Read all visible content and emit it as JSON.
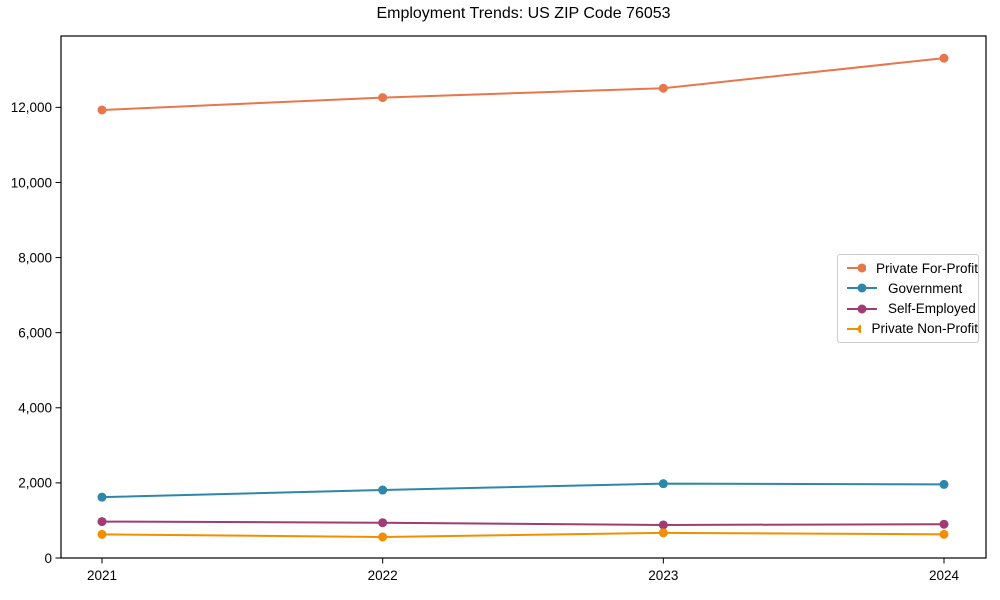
{
  "chart_data": {
    "type": "line",
    "title": "Employment Trends: US ZIP Code 76053",
    "categories": [
      "2021",
      "2022",
      "2023",
      "2024"
    ],
    "series": [
      {
        "name": "Private For-Profit",
        "color": "#E8764B",
        "values": [
          11930,
          12260,
          12510,
          13310
        ]
      },
      {
        "name": "Government",
        "color": "#2E86AB",
        "values": [
          1620,
          1810,
          1980,
          1960
        ]
      },
      {
        "name": "Self-Employed",
        "color": "#A23B72",
        "values": [
          970,
          940,
          880,
          900
        ]
      },
      {
        "name": "Private Non-Profit",
        "color": "#F18F01",
        "values": [
          630,
          560,
          670,
          630
        ]
      }
    ],
    "xlabel": "",
    "ylabel": "",
    "ylim": [
      0,
      13900
    ],
    "y_ticks": [
      0,
      2000,
      4000,
      6000,
      8000,
      10000,
      12000
    ],
    "y_tick_labels": [
      "0",
      "2,000",
      "4,000",
      "6,000",
      "8,000",
      "10,000",
      "12,000"
    ],
    "grid": false,
    "legend_position": "center-right",
    "marker": "circle",
    "line_width": 2,
    "axis_color": "#000000",
    "legend_border_color": "#cccccc",
    "background_color": "#ffffff"
  }
}
